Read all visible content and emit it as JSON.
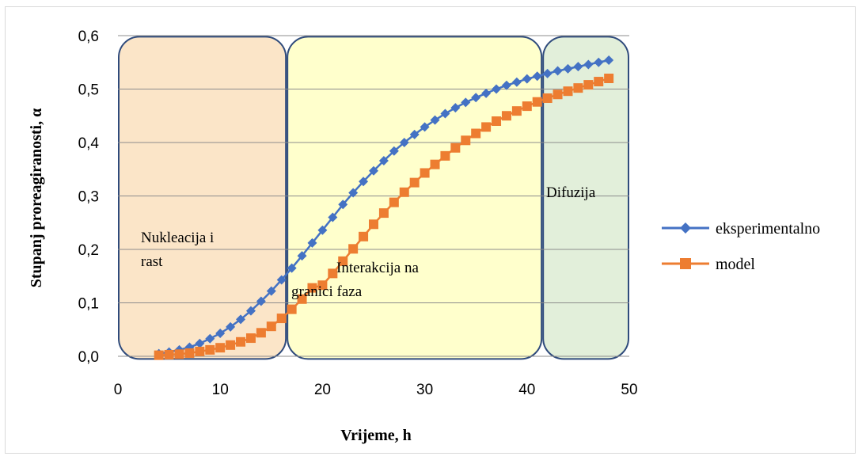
{
  "chart_data": {
    "type": "scatter",
    "xlabel": "Vrijeme, h",
    "ylabel": "Stupanj proreagiranosti, α",
    "xlim": [
      0,
      50
    ],
    "ylim": [
      0,
      0.6
    ],
    "x_ticks": [
      "0",
      "10",
      "20",
      "30",
      "40",
      "50"
    ],
    "y_ticks": [
      "0,0",
      "0,1",
      "0,2",
      "0,3",
      "0,4",
      "0,5",
      "0,6"
    ],
    "grid": "horizontal",
    "legend_position": "right",
    "x": [
      4,
      5,
      6,
      7,
      8,
      9,
      10,
      11,
      12,
      13,
      14,
      15,
      16,
      17,
      18,
      19,
      20,
      21,
      22,
      23,
      24,
      25,
      26,
      27,
      28,
      29,
      30,
      31,
      32,
      33,
      34,
      35,
      36,
      37,
      38,
      39,
      40,
      41,
      42,
      43,
      44,
      45,
      46,
      47,
      48
    ],
    "series": [
      {
        "name": "eksperimentalno",
        "color": "#4472c4",
        "marker": "diamond",
        "values": [
          0.005,
          0.008,
          0.012,
          0.017,
          0.024,
          0.033,
          0.043,
          0.055,
          0.069,
          0.085,
          0.103,
          0.122,
          0.143,
          0.165,
          0.188,
          0.212,
          0.236,
          0.26,
          0.284,
          0.306,
          0.327,
          0.347,
          0.366,
          0.384,
          0.4,
          0.415,
          0.429,
          0.442,
          0.454,
          0.465,
          0.475,
          0.484,
          0.492,
          0.5,
          0.507,
          0.513,
          0.519,
          0.524,
          0.529,
          0.534,
          0.538,
          0.542,
          0.546,
          0.55,
          0.554
        ]
      },
      {
        "name": "model",
        "color": "#ed7d31",
        "marker": "square",
        "values": [
          0.002,
          0.003,
          0.004,
          0.006,
          0.009,
          0.012,
          0.016,
          0.021,
          0.027,
          0.034,
          0.044,
          0.056,
          0.071,
          0.088,
          0.107,
          0.128,
          0.133,
          0.155,
          0.178,
          0.201,
          0.224,
          0.247,
          0.268,
          0.288,
          0.307,
          0.325,
          0.343,
          0.359,
          0.375,
          0.39,
          0.404,
          0.417,
          0.429,
          0.44,
          0.45,
          0.459,
          0.468,
          0.476,
          0.483,
          0.49,
          0.496,
          0.502,
          0.508,
          0.514,
          0.52
        ]
      }
    ],
    "regions": [
      {
        "label_lines": [
          "Nukleacija i",
          "rast"
        ],
        "x_start": 0,
        "x_end": 16.5,
        "fill": "#fbe5c8"
      },
      {
        "label_lines": [
          "Interakcija na",
          "granici faza"
        ],
        "x_start": 16.5,
        "x_end": 41.5,
        "fill": "#ffffcc"
      },
      {
        "label_lines": [
          "Difuzija"
        ],
        "x_start": 41.5,
        "x_end": 50,
        "fill": "#e2efda"
      }
    ]
  }
}
